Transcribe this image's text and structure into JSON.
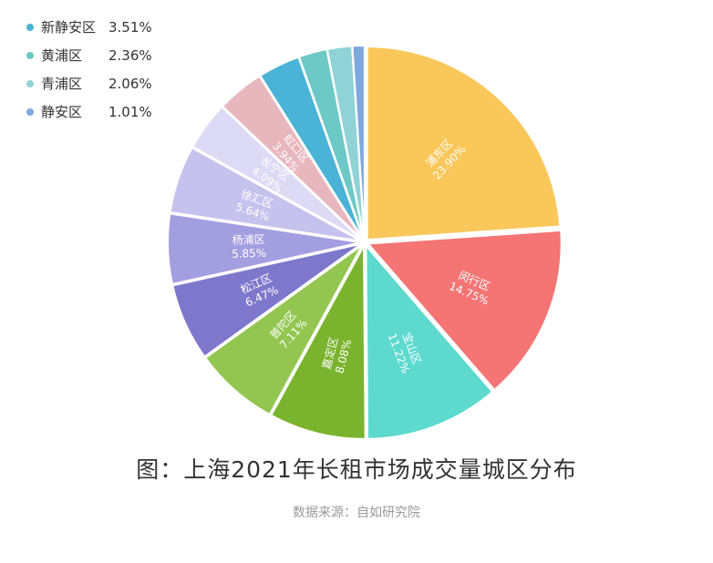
{
  "chart_data": {
    "type": "pie",
    "title": "图：上海2021年长租市场成交量城区分布",
    "source": "数据来源：自如研究院",
    "slices": [
      {
        "name": "浦东区",
        "value": 23.9,
        "label": "23.90%",
        "color": "#F9C75A"
      },
      {
        "name": "闵行区",
        "value": 14.75,
        "label": "14.75%",
        "color": "#F57474"
      },
      {
        "name": "宝山区",
        "value": 11.22,
        "label": "11.22%",
        "color": "#5DD9CE"
      },
      {
        "name": "嘉定区",
        "value": 8.08,
        "label": "8.08%",
        "color": "#7AB32E"
      },
      {
        "name": "普陀区",
        "value": 7.11,
        "label": "7.11%",
        "color": "#92C650"
      },
      {
        "name": "松江区",
        "value": 6.47,
        "label": "6.47%",
        "color": "#7E78CC"
      },
      {
        "name": "杨浦区",
        "value": 5.85,
        "label": "5.85%",
        "color": "#A39EE0"
      },
      {
        "name": "徐汇区",
        "value": 5.64,
        "label": "5.64%",
        "color": "#C6C2EE"
      },
      {
        "name": "长宁区",
        "value": 4.09,
        "label": "4.09%",
        "color": "#DCDAF5"
      },
      {
        "name": "虹口区",
        "value": 3.94,
        "label": "3.94%",
        "color": "#E8B7BD"
      },
      {
        "name": "新静安区",
        "value": 3.51,
        "label": "3.51%",
        "color": "#4BB3D6"
      },
      {
        "name": "黄浦区",
        "value": 2.36,
        "label": "2.36%",
        "color": "#6CC9C5"
      },
      {
        "name": "青浦区",
        "value": 2.06,
        "label": "2.06%",
        "color": "#8FD3D6"
      },
      {
        "name": "静安区",
        "value": 1.01,
        "label": "1.01%",
        "color": "#7FA8DE"
      }
    ],
    "legend": [
      {
        "name": "新静安区",
        "label": "3.51%",
        "color": "#4BB3D6"
      },
      {
        "name": "黄浦区",
        "label": "2.36%",
        "color": "#6CC9C5"
      },
      {
        "name": "青浦区",
        "label": "2.06%",
        "color": "#8FD3D6"
      },
      {
        "name": "静安区",
        "label": "1.01%",
        "color": "#7FA8DE"
      }
    ]
  }
}
